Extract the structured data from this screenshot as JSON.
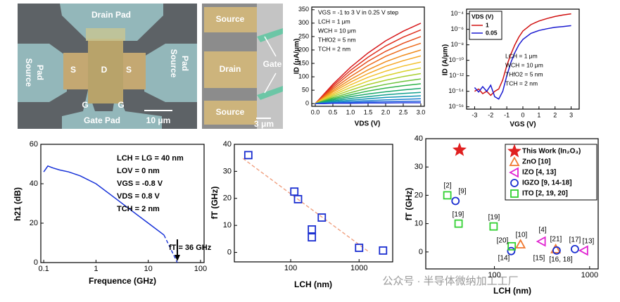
{
  "images": [
    {
      "labels": [
        "Drain Pad",
        "Source",
        "Pad",
        "Source",
        "Pad",
        "S",
        "D",
        "S",
        "G",
        "G",
        "Gate Pad",
        "10 μm"
      ]
    },
    {
      "labels": [
        "Source",
        "Drain",
        "Gate",
        "Source",
        "3 μm"
      ]
    }
  ],
  "watermark": "公众号 · 半导体微纳加工工厂",
  "chart_data": [
    {
      "type": "line",
      "x_label": "VDS (V)",
      "y_label": "ID (μA/μm)",
      "annotations": [
        "VGS = -1 to 3 V in 0.25 V step",
        "LCH = 1 μm",
        "WCH = 10 μm",
        "THfO2 = 5 nm",
        "TCH = 2 nm"
      ],
      "xlim": [
        -0.1,
        3.1
      ],
      "ylim": [
        -10,
        360
      ],
      "xticks": [
        {
          "value": 0,
          "label": "0.0"
        },
        0.5,
        {
          "value": 1,
          "label": "1.0"
        },
        1.5,
        {
          "value": 2,
          "label": "2.0"
        },
        2.5,
        {
          "value": 3,
          "label": "3.0"
        }
      ],
      "yticks": [
        0,
        50,
        100,
        150,
        200,
        250,
        300,
        350
      ],
      "x": [
        0,
        0.25,
        0.5,
        1,
        1.5,
        2,
        2.5,
        3
      ],
      "series": [
        {
          "color": "#d7191c",
          "values": [
            0,
            36,
            72,
            135,
            189,
            234,
            270,
            300
          ]
        },
        {
          "color": "#e0301e",
          "values": [
            0,
            33,
            66,
            124,
            173,
            215,
            248,
            275
          ]
        },
        {
          "color": "#e64a19",
          "values": [
            0,
            30,
            60,
            113,
            158,
            195,
            225,
            250
          ]
        },
        {
          "color": "#ec6a1a",
          "values": [
            0,
            27,
            54,
            101,
            142,
            176,
            203,
            225
          ]
        },
        {
          "color": "#f08c1c",
          "values": [
            0,
            24,
            48,
            90,
            126,
            156,
            180,
            200
          ]
        },
        {
          "color": "#f5a623",
          "values": [
            0,
            21,
            43,
            80,
            112,
            139,
            160,
            178
          ]
        },
        {
          "color": "#f2c12e",
          "values": [
            0,
            19,
            37,
            70,
            98,
            121,
            140,
            155
          ]
        },
        {
          "color": "#d9d12b",
          "values": [
            0,
            16,
            32,
            60,
            84,
            104,
            120,
            133
          ]
        },
        {
          "color": "#a8cf2f",
          "values": [
            0,
            13,
            27,
            50,
            71,
            87,
            101,
            112
          ]
        },
        {
          "color": "#6cc33a",
          "values": [
            0,
            11,
            22,
            41,
            58,
            72,
            83,
            92
          ]
        },
        {
          "color": "#2fb34a",
          "values": [
            0,
            9,
            18,
            33,
            47,
            58,
            67,
            74
          ]
        },
        {
          "color": "#1aa86a",
          "values": [
            0,
            7,
            14,
            26,
            36,
            44,
            51,
            57
          ]
        },
        {
          "color": "#12a08e",
          "values": [
            0,
            5,
            10,
            19,
            26,
            33,
            38,
            42
          ]
        },
        {
          "color": "#1296b4",
          "values": [
            0,
            3,
            7,
            13,
            18,
            23,
            26,
            29
          ]
        },
        {
          "color": "#1a7fd0",
          "values": [
            0,
            2,
            4,
            8,
            11,
            14,
            16,
            18
          ]
        },
        {
          "color": "#1f5fdc",
          "values": [
            0,
            1,
            2,
            4,
            6,
            7,
            8,
            9
          ]
        },
        {
          "color": "#2a3fe0",
          "values": [
            0,
            0,
            1,
            1,
            2,
            2,
            3,
            3
          ]
        }
      ]
    },
    {
      "type": "line",
      "x_label": "VGS (V)",
      "y_label": "ID (A/μm)",
      "yscale": "log",
      "legend_title": "VDS (V)",
      "annotations": [
        "LCH = 1 μm",
        "WCH = 10 μm",
        "THfO2 = 5 nm",
        "TCH = 2 nm"
      ],
      "xlim": [
        -3.5,
        3.5
      ],
      "ylim": [
        5e-17,
        0.0004
      ],
      "xticks": [
        -3,
        -2,
        -1,
        0,
        1,
        2,
        3
      ],
      "yticks": [
        {
          "value": 1e-16,
          "label": "10⁻¹⁶"
        },
        {
          "value": 1e-14,
          "label": "10⁻¹⁴"
        },
        {
          "value": 1e-12,
          "label": "10⁻¹²"
        },
        {
          "value": 1e-10,
          "label": "10⁻¹⁰"
        },
        {
          "value": 1e-08,
          "label": "10⁻⁸"
        },
        {
          "value": 1e-06,
          "label": "10⁻⁶"
        },
        {
          "value": 0.0001,
          "label": "10⁻⁴"
        }
      ],
      "x": [
        -3,
        -2.75,
        -2.5,
        -2.25,
        -2,
        -1.75,
        -1.5,
        -1.25,
        -1,
        -0.75,
        -0.5,
        -0.25,
        0,
        0.5,
        1,
        1.5,
        2,
        2.5,
        3
      ],
      "series": [
        {
          "name": "1",
          "color": "#d01010",
          "values": [
            1e-14,
            2e-14,
            5e-15,
            1e-14,
            3e-15,
            1e-14,
            2e-14,
            3e-13,
            2e-11,
            6e-10,
            1e-08,
            1e-07,
            6e-07,
            4e-06,
            1.2e-05,
            2.5e-05,
            4.5e-05,
            7e-05,
            0.0001
          ]
        },
        {
          "name": "0.05",
          "color": "#1a1ad0",
          "values": [
            3e-14,
            8e-15,
            4e-14,
            1e-14,
            6e-14,
            2e-15,
            1e-15,
            1e-14,
            1e-12,
            5e-11,
            1e-09,
            1e-08,
            5e-08,
            3e-07,
            7e-07,
            1.2e-06,
            1.8e-06,
            2.3e-06,
            3e-06
          ]
        }
      ]
    },
    {
      "type": "line",
      "x_label": "Frequence (GHz)",
      "y_label": "h21 (dB)",
      "xscale": "log",
      "annotations": [
        "LCH = LG = 40 nm",
        "LOV = 0 nm",
        "VGS = -0.8 V",
        "VDS = 0.8 V",
        "TCH =  2 nm",
        "fT = 36 GHz"
      ],
      "xlim": [
        0.088,
        117
      ],
      "ylim": [
        0,
        60
      ],
      "xticks": [
        0.1,
        1,
        10,
        100
      ],
      "yticks": [
        0,
        20,
        40,
        60
      ],
      "series": [
        {
          "color": "#1530d8",
          "x": [
            0.1,
            0.12,
            0.15,
            0.2,
            0.3,
            0.5,
            1,
            2,
            5,
            10,
            20
          ],
          "values": [
            46,
            49,
            48,
            47,
            46,
            44,
            40,
            34,
            26,
            20,
            14
          ]
        },
        {
          "color": "#1530d8",
          "dash": true,
          "x": [
            20,
            36
          ],
          "values": [
            14,
            0
          ]
        }
      ]
    },
    {
      "type": "scatter",
      "x_label": "LCH (nm)",
      "y_label": "fT (GHz)",
      "xscale": "log",
      "xlim": [
        15,
        3100
      ],
      "ylim": [
        -3.5,
        40
      ],
      "xticks": [
        100,
        1000
      ],
      "yticks": [
        0,
        10,
        20,
        30,
        40
      ],
      "series": [
        {
          "color": "#f0a080",
          "dash": true,
          "x": [
            20,
            1430
          ],
          "values": [
            34.8,
            0
          ]
        },
        {
          "color": "#1a2ed0",
          "marker": "square",
          "x": [
            24,
            113,
            128,
            204,
            204,
            285,
            1000,
            2240
          ],
          "values": [
            36,
            22.5,
            19.7,
            8.5,
            5.6,
            12.9,
            1.7,
            0.7
          ]
        }
      ]
    },
    {
      "type": "scatter",
      "x_label": "LCH (nm)",
      "y_label": "fT (GHz)",
      "xscale": "log",
      "xlim": [
        19,
        1230
      ],
      "ylim": [
        -6,
        40
      ],
      "xticks": [
        100,
        1000
      ],
      "yticks": [
        0,
        10,
        20,
        30,
        40
      ],
      "annotations": [
        "[2]",
        "[9]",
        "[19]",
        "[19]",
        "[10]",
        "[20]",
        "[14]",
        "[4]",
        "[15]",
        "[21]",
        "[16, 18]",
        "[17]",
        "[13]"
      ],
      "series": [
        {
          "name": "This Work (In₂O₃)",
          "color": "#e02020",
          "marker": "star",
          "x": [
            43
          ],
          "values": [
            36
          ]
        },
        {
          "name": "ZnO [10]",
          "color": "#f07830",
          "marker": "triangle",
          "x": [
            188,
            440
          ],
          "values": [
            2.7,
            1
          ]
        },
        {
          "name": "IZO [4, 13]",
          "color": "#e020d0",
          "marker": "triangle-left",
          "x": [
            313,
            873
          ],
          "values": [
            3.7,
            0.5
          ]
        },
        {
          "name": "IGZO [9, 14-18]",
          "color": "#1a2ed0",
          "marker": "circle",
          "x": [
            39,
            150,
            450,
            700
          ],
          "values": [
            18,
            0.3,
            0.5,
            1
          ]
        },
        {
          "name": "ITO [2, 19, 20]",
          "color": "#30d030",
          "marker": "square",
          "x": [
            32,
            42,
            98,
            152
          ],
          "values": [
            20,
            10,
            9,
            2
          ]
        }
      ]
    }
  ]
}
